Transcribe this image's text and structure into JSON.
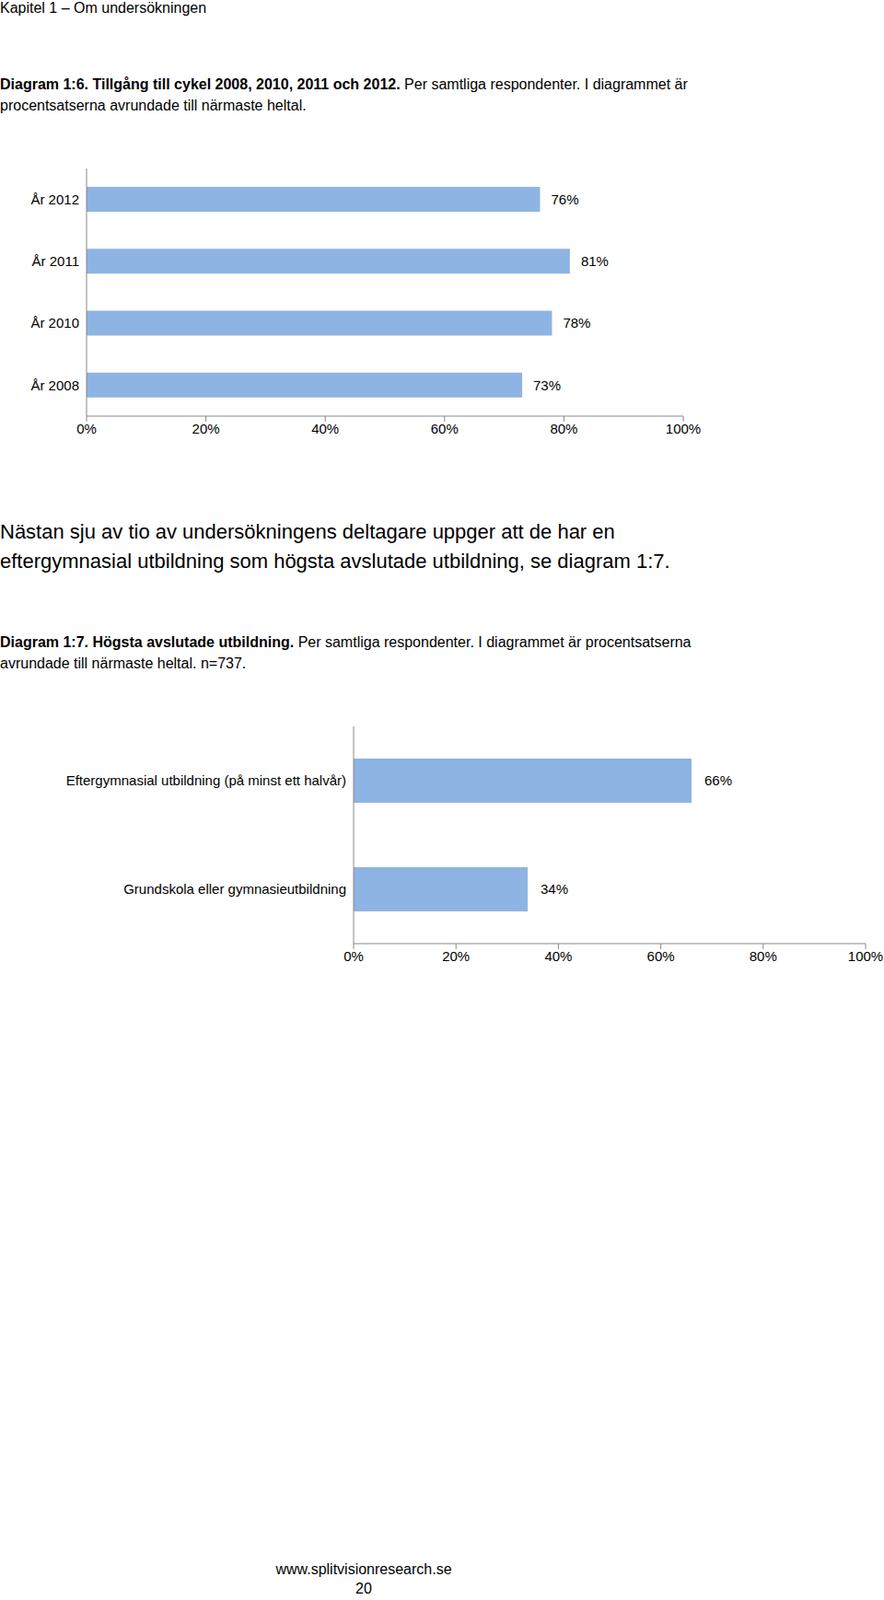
{
  "header": "Kapitel 1 – Om undersökningen",
  "chart_data": [
    {
      "type": "bar",
      "orientation": "horizontal",
      "title": "Diagram 1:6. Tillgång till cykel 2008, 2010, 2011 och 2012.",
      "subtitle": "Per samtliga respondenter. I diagrammet är procentsatserna avrundade till närmaste heltal.",
      "categories": [
        "År 2012",
        "År 2011",
        "År 2010",
        "År 2008"
      ],
      "values": [
        76,
        81,
        78,
        73
      ],
      "value_labels": [
        "76%",
        "81%",
        "78%",
        "73%"
      ],
      "color": "#8eb4e3",
      "xlim": [
        0,
        100
      ],
      "xticks": [
        {
          "value": 0,
          "label": "0%"
        },
        {
          "value": 20,
          "label": "20%"
        },
        {
          "value": 40,
          "label": "40%"
        },
        {
          "value": 60,
          "label": "60%"
        },
        {
          "value": 80,
          "label": "80%"
        },
        {
          "value": 100,
          "label": "100%"
        }
      ],
      "data_labels": true,
      "grid": false
    },
    {
      "type": "bar",
      "orientation": "horizontal",
      "title": "Diagram 1:7. Högsta avslutade utbildning.",
      "subtitle": "Per samtliga respondenter. I diagrammet är procentsatserna avrundade till närmaste heltal. n=737.",
      "categories": [
        "Eftergymnasial utbildning (på minst ett halvår)",
        "Grundskola eller gymnasieutbildning"
      ],
      "values": [
        66,
        34
      ],
      "value_labels": [
        "66%",
        "34%"
      ],
      "color": "#8eb4e3",
      "xlim": [
        0,
        100
      ],
      "xticks": [
        {
          "value": 0,
          "label": "0%"
        },
        {
          "value": 20,
          "label": "20%"
        },
        {
          "value": 40,
          "label": "40%"
        },
        {
          "value": 60,
          "label": "60%"
        },
        {
          "value": 80,
          "label": "80%"
        },
        {
          "value": 100,
          "label": "100%"
        }
      ],
      "data_labels": true,
      "grid": false
    }
  ],
  "paragraph": "Nästan sju av tio av undersökningens deltagare uppger att de har en eftergymnasial utbildning som högsta avslutade utbildning, se diagram 1:7.",
  "footer": {
    "url": "www.splitvisionresearch.se",
    "page": 20
  }
}
